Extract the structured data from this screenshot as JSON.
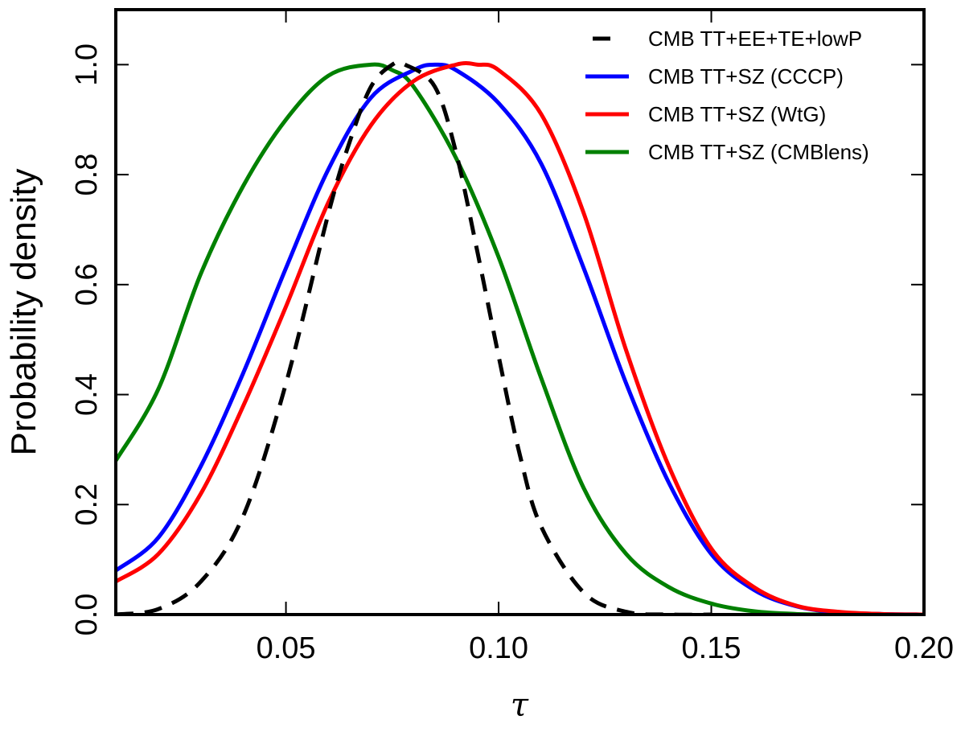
{
  "chart_data": {
    "type": "line",
    "title": "",
    "xlabel": "τ",
    "ylabel": "Probability density",
    "xlim": [
      0.01,
      0.2
    ],
    "ylim": [
      0.0,
      1.1
    ],
    "xticks": [
      0.05,
      0.1,
      0.15,
      0.2
    ],
    "xtick_labels": [
      "0.05",
      "0.10",
      "0.15",
      "0.20"
    ],
    "yticks": [
      0.0,
      0.2,
      0.4,
      0.6,
      0.8,
      1.0
    ],
    "ytick_labels": [
      "0.0",
      "0.2",
      "0.4",
      "0.6",
      "0.8",
      "1.0"
    ],
    "grid": false,
    "legend_position": "top-right",
    "series": [
      {
        "name": "CMB TT+EE+TE+lowP",
        "color": "#000000",
        "style": "dashed",
        "x": [
          0.01,
          0.02,
          0.03,
          0.04,
          0.05,
          0.06,
          0.065,
          0.07,
          0.075,
          0.078,
          0.085,
          0.09,
          0.095,
          0.1,
          0.105,
          0.11,
          0.12,
          0.13,
          0.14,
          0.15
        ],
        "y": [
          0.0,
          0.01,
          0.06,
          0.18,
          0.42,
          0.73,
          0.86,
          0.96,
          1.0,
          1.0,
          0.96,
          0.84,
          0.66,
          0.47,
          0.29,
          0.16,
          0.04,
          0.005,
          0.0,
          0.0
        ]
      },
      {
        "name": "CMB TT+SZ (CCCP)",
        "color": "#0000ff",
        "style": "solid",
        "x": [
          0.01,
          0.02,
          0.03,
          0.04,
          0.05,
          0.06,
          0.07,
          0.08,
          0.085,
          0.09,
          0.1,
          0.11,
          0.12,
          0.13,
          0.14,
          0.15,
          0.16,
          0.17,
          0.18,
          0.19,
          0.2
        ],
        "y": [
          0.08,
          0.14,
          0.27,
          0.44,
          0.63,
          0.81,
          0.94,
          0.99,
          1.0,
          0.99,
          0.93,
          0.82,
          0.63,
          0.42,
          0.24,
          0.11,
          0.045,
          0.015,
          0.004,
          0.001,
          0.0
        ]
      },
      {
        "name": "CMB TT+SZ (WtG)",
        "color": "#ff0000",
        "style": "solid",
        "x": [
          0.01,
          0.02,
          0.03,
          0.04,
          0.05,
          0.06,
          0.07,
          0.08,
          0.09,
          0.095,
          0.1,
          0.11,
          0.12,
          0.13,
          0.14,
          0.15,
          0.16,
          0.17,
          0.18,
          0.19,
          0.2
        ],
        "y": [
          0.06,
          0.11,
          0.22,
          0.38,
          0.56,
          0.75,
          0.89,
          0.97,
          1.0,
          1.0,
          0.99,
          0.91,
          0.73,
          0.48,
          0.27,
          0.12,
          0.05,
          0.016,
          0.005,
          0.001,
          0.0
        ]
      },
      {
        "name": "CMB TT+SZ (CMBlens)",
        "color": "#008000",
        "style": "solid",
        "x": [
          0.01,
          0.02,
          0.03,
          0.04,
          0.05,
          0.06,
          0.07,
          0.075,
          0.08,
          0.09,
          0.1,
          0.11,
          0.12,
          0.13,
          0.14,
          0.15,
          0.16,
          0.17,
          0.18
        ],
        "y": [
          0.28,
          0.41,
          0.62,
          0.78,
          0.9,
          0.98,
          1.0,
          0.99,
          0.96,
          0.83,
          0.65,
          0.43,
          0.23,
          0.11,
          0.05,
          0.02,
          0.006,
          0.001,
          0.0
        ]
      }
    ]
  }
}
